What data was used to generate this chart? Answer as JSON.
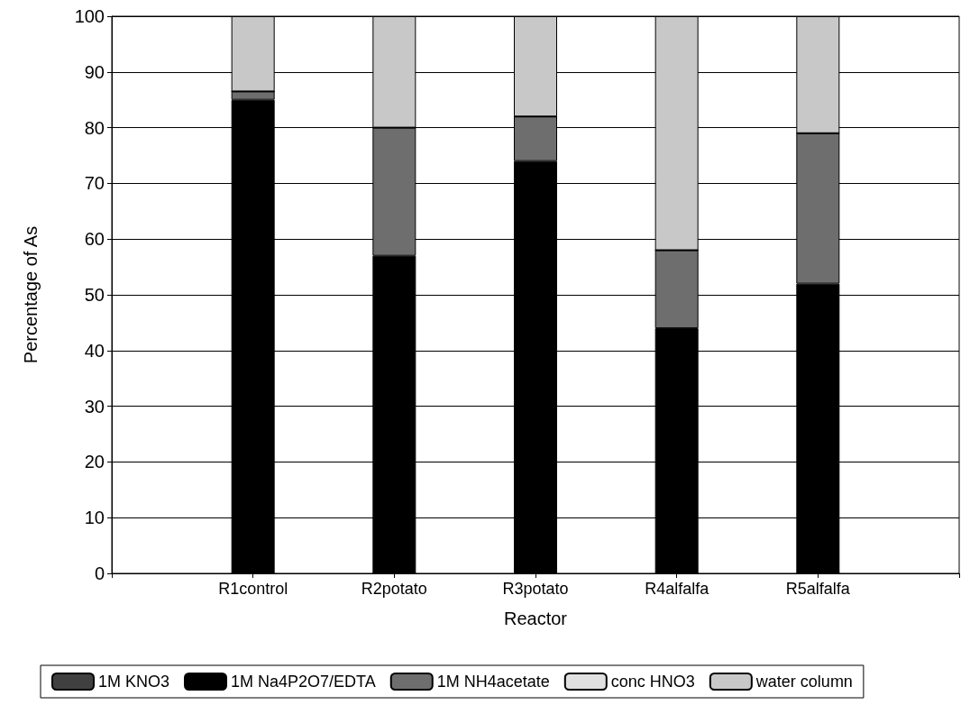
{
  "chart_data": {
    "type": "bar",
    "stacked": true,
    "xlabel": "Reactor",
    "ylabel": "Percentage of As",
    "categories": [
      null,
      "R1control",
      "R2potato",
      "R3potato",
      "R4alfalfa",
      "R5alfalfa",
      null
    ],
    "series": [
      {
        "name": "1M KNO3",
        "color": "#404040",
        "values": [
          null,
          0,
          0,
          0,
          0,
          0,
          null
        ]
      },
      {
        "name": "1M Na4P2O7/EDTA",
        "color": "#000000",
        "values": [
          null,
          85,
          57,
          74,
          44,
          52,
          null
        ]
      },
      {
        "name": "1M NH4acetate",
        "color": "#6e6e6e",
        "values": [
          null,
          1.5,
          23,
          8,
          14,
          27,
          null
        ]
      },
      {
        "name": "conc HNO3",
        "color": "#e0e0e0",
        "values": [
          null,
          0,
          0,
          0,
          0,
          0,
          null
        ]
      },
      {
        "name": "water column",
        "color": "#c8c8c8",
        "values": [
          null,
          13.5,
          20,
          18,
          42,
          21,
          null
        ]
      }
    ],
    "ylim": [
      0,
      100
    ],
    "yticks": [
      0,
      10,
      20,
      30,
      40,
      50,
      60,
      70,
      80,
      90,
      100
    ],
    "grid": "y",
    "legend": "bottom"
  }
}
